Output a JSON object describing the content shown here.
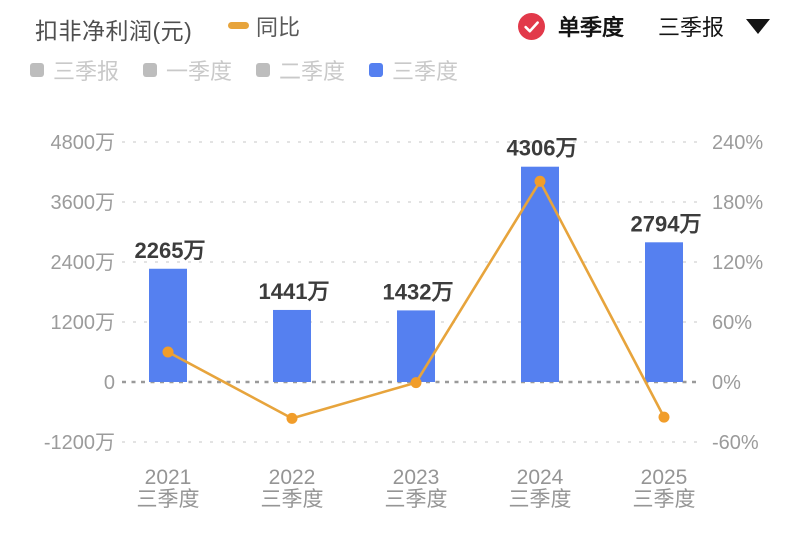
{
  "header": {
    "title": "扣非净利润(元)",
    "yoy_label": "同比",
    "mode_label": "单季度",
    "period_label": "三季报",
    "accent_red": "#e2394a",
    "caret_icon": "caret-down"
  },
  "legend": {
    "items": [
      {
        "label": "三季报",
        "color": "#bdbdbd",
        "active": false
      },
      {
        "label": "一季度",
        "color": "#bdbdbd",
        "active": false
      },
      {
        "label": "二季度",
        "color": "#bdbdbd",
        "active": false
      },
      {
        "label": "三季度",
        "color": "#5580f0",
        "active": true
      }
    ]
  },
  "chart_data": {
    "type": "bar+line",
    "title": "扣非净利润(元) 单季度 三季报",
    "categories": [
      {
        "year": "2021",
        "sub": "三季度"
      },
      {
        "year": "2022",
        "sub": "三季度"
      },
      {
        "year": "2023",
        "sub": "三季度"
      },
      {
        "year": "2024",
        "sub": "三季度"
      },
      {
        "year": "2025",
        "sub": "三季度"
      }
    ],
    "series": [
      {
        "name": "扣非净利润",
        "type": "bar",
        "unit": "万元",
        "values": [
          2265,
          1441,
          1432,
          4306,
          2794
        ],
        "labels": [
          "2265万",
          "1441万",
          "1432万",
          "4306万",
          "2794万"
        ],
        "color": "#5580f0",
        "axis": "left"
      },
      {
        "name": "同比",
        "type": "line",
        "unit": "%",
        "values": [
          30,
          -36.4,
          -0.6,
          200.7,
          -35.1
        ],
        "color": "#e7a43c",
        "point_color": "#f19d2a",
        "axis": "right"
      }
    ],
    "left_axis": {
      "unit": "万",
      "range": [
        -1200,
        4800
      ],
      "ticks": [
        {
          "label": "4800万",
          "value": 4800
        },
        {
          "label": "3600万",
          "value": 3600
        },
        {
          "label": "2400万",
          "value": 2400
        },
        {
          "label": "1200万",
          "value": 1200
        },
        {
          "label": "0",
          "value": 0
        },
        {
          "label": "-1200万",
          "value": -1200
        }
      ]
    },
    "right_axis": {
      "unit": "%",
      "range": [
        -60,
        240
      ],
      "ticks": [
        {
          "label": "240%",
          "value": 240
        },
        {
          "label": "180%",
          "value": 180
        },
        {
          "label": "120%",
          "value": 120
        },
        {
          "label": "60%",
          "value": 60
        },
        {
          "label": "0%",
          "value": 0
        },
        {
          "label": "-60%",
          "value": -60
        }
      ]
    },
    "grid": "dashed",
    "legend_position": "top-left"
  }
}
